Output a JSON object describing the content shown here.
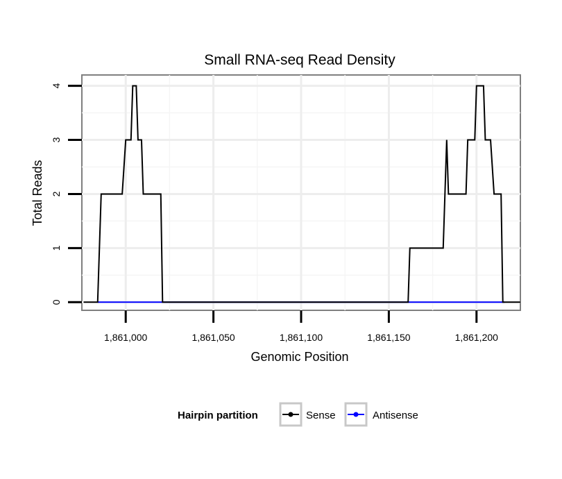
{
  "chart_data": {
    "type": "line",
    "title": "Small RNA-seq Read Density",
    "xlabel": "Genomic Position",
    "ylabel": "Total Reads",
    "xlim": [
      1860975,
      1861225
    ],
    "ylim": [
      -0.15,
      4.2
    ],
    "x_ticks": [
      1861000,
      1861050,
      1861100,
      1861150,
      1861200
    ],
    "x_tick_labels": [
      "1,861,000",
      "1,861,050",
      "1,861,100",
      "1,861,150",
      "1,861,200"
    ],
    "y_ticks": [
      0,
      1,
      2,
      3,
      4
    ],
    "y_tick_labels": [
      "0",
      "1",
      "2",
      "3",
      "4"
    ],
    "grid": true,
    "legend": {
      "title": "Hairpin partition",
      "position": "bottom",
      "entries": [
        "Sense",
        "Antisense"
      ]
    },
    "series": [
      {
        "name": "Sense",
        "color": "#000000",
        "x": [
          1860976,
          1860984,
          1860986,
          1860998,
          1861000,
          1861003,
          1861004,
          1861006,
          1861007,
          1861009,
          1861010,
          1861020,
          1861021,
          1861161,
          1861162,
          1861181,
          1861183,
          1861184,
          1861185,
          1861194,
          1861195,
          1861199,
          1861200,
          1861204,
          1861205,
          1861208,
          1861210,
          1861214,
          1861215,
          1861225
        ],
        "values": [
          0,
          0,
          2,
          2,
          3,
          3,
          4,
          4,
          3,
          3,
          2,
          2,
          0,
          0,
          1,
          1,
          3,
          2,
          2,
          2,
          3,
          3,
          4,
          4,
          3,
          3,
          2,
          2,
          0,
          0
        ]
      },
      {
        "name": "Antisense",
        "color": "#0000ff",
        "x": [
          1860984,
          1861020,
          1861161,
          1861216
        ],
        "values": [
          0,
          0,
          0,
          0
        ]
      }
    ]
  }
}
